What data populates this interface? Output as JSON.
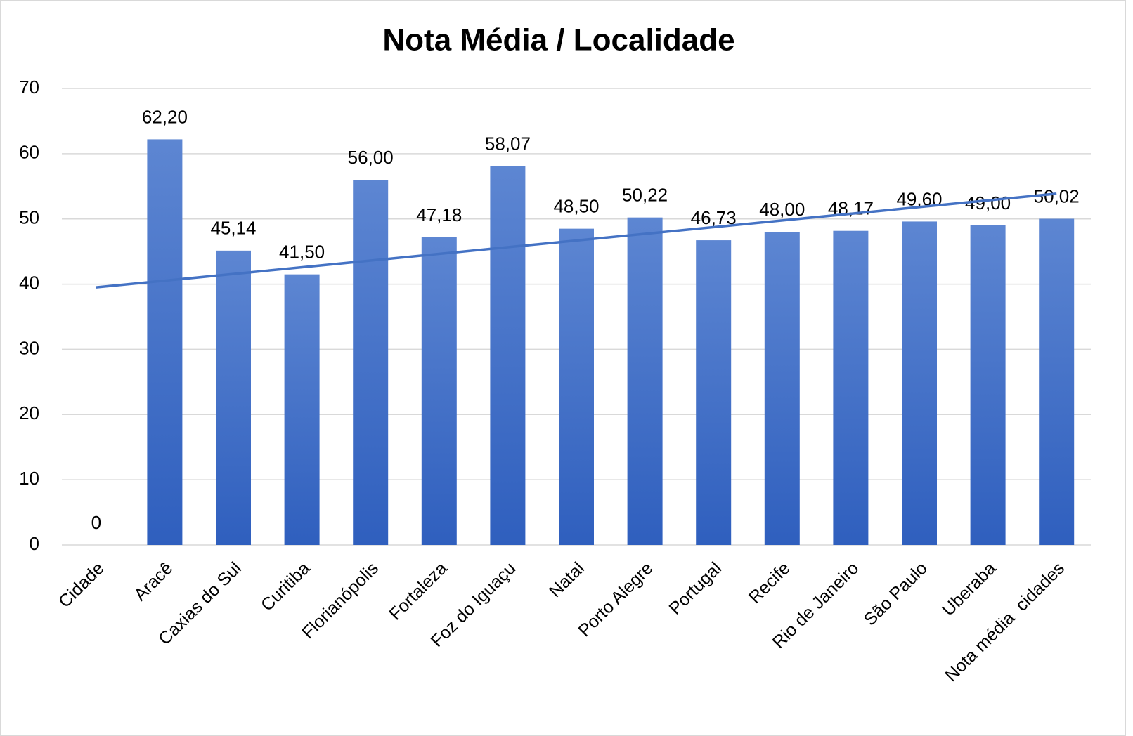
{
  "chart_data": {
    "type": "bar",
    "title": "Nota Média / Localidade",
    "categories": [
      "Cidade",
      "Aracê",
      "Caxias do Sul",
      "Curitiba",
      "Florianópolis",
      "Fortaleza",
      "Foz do Iguaçu",
      "Natal",
      "Porto Alegre",
      "Portugal",
      "Recife",
      "Rio de Janeiro",
      "São Paulo",
      "Uberaba",
      "Nota média  cidades"
    ],
    "values": [
      0,
      62.2,
      45.14,
      41.5,
      56.0,
      47.18,
      58.07,
      48.5,
      50.22,
      46.73,
      48.0,
      48.17,
      49.6,
      49.0,
      50.02
    ],
    "value_labels": [
      "0",
      "62,20",
      "45,14",
      "41,50",
      "56,00",
      "47,18",
      "58,07",
      "48,50",
      "50,22",
      "46,73",
      "48,00",
      "48,17",
      "49,60",
      "49,00",
      "50,02"
    ],
    "color": "#4472c4",
    "ylim": [
      0,
      70
    ],
    "yticks": [
      0,
      10,
      20,
      30,
      40,
      50,
      60,
      70
    ],
    "grid": true,
    "trendline": "linear",
    "trendline_color": "#4472c4"
  }
}
